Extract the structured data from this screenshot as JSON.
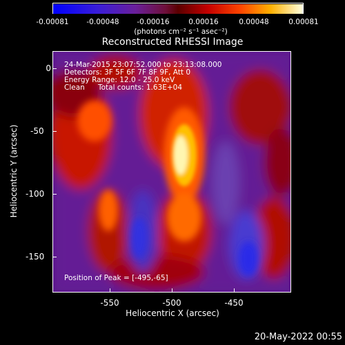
{
  "colorbar": {
    "ticks": [
      "-0.00081",
      "-0.00048",
      "-0.00016",
      "0.00016",
      "0.00048",
      "0.00081"
    ],
    "units": "(photons cm⁻² s⁻¹ asec⁻²)"
  },
  "title": "Reconstructed RHESSI Image",
  "annotations": {
    "time_range": "24-Mar-2015 23:07:52.000 to 23:13:08.000",
    "detectors": "Detectors: 3F 5F 6F 7F 8F 9F, Att 0",
    "energy": "Energy Range: 12.0 - 25.0 keV",
    "method": "Clean",
    "counts": "Total counts: 1.63E+04",
    "peak": "Position of Peak = [-495,-65]"
  },
  "axes": {
    "xlabel": "Heliocentric X (arcsec)",
    "ylabel": "Heliocentric Y (arcsec)",
    "xticks": [
      "-550",
      "-500",
      "-450"
    ],
    "yticks": [
      "0",
      "-50",
      "-100",
      "-150"
    ]
  },
  "footer_date": "20-May-2022 00:55"
}
